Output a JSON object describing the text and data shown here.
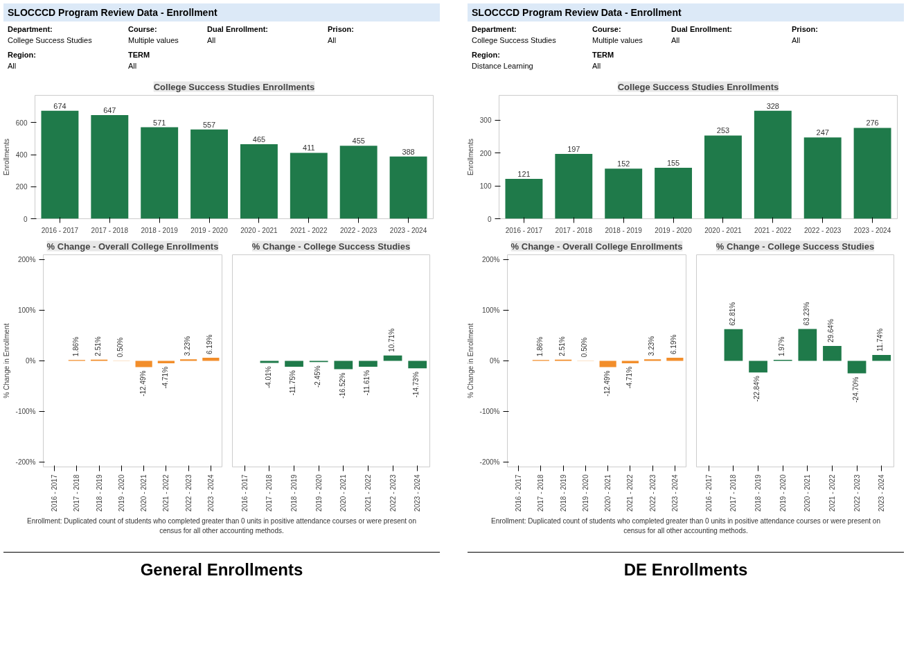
{
  "chart_data": [
    {
      "type": "bar",
      "title": "College Success Studies Enrollments",
      "ylabel": "Enrollments",
      "categories": [
        "2016 - 2017",
        "2017 - 2018",
        "2018 - 2019",
        "2019 - 2020",
        "2020 - 2021",
        "2021 - 2022",
        "2022 - 2023",
        "2023 - 2024"
      ],
      "values": [
        674,
        647,
        571,
        557,
        465,
        411,
        455,
        388
      ],
      "color": "#1f7a4a",
      "data_labels": true,
      "ylim": [
        0,
        770
      ],
      "yticks": [
        0,
        200,
        400,
        600
      ],
      "grid": false,
      "annotations": [
        "SLOCCCD Program Review Data - Enrollment",
        "Department:",
        "College Success Studies",
        "Course:",
        "Multiple values",
        "Dual Enrollment:",
        "All",
        "Prison:",
        "All",
        "Region:",
        "All",
        "TERM",
        "All"
      ]
    },
    {
      "type": "bar",
      "title": "% Change - Overall College Enrollments",
      "ylabel": "% Change in Enrollment",
      "categories": [
        "2016 - 2017",
        "2017 - 2018",
        "2018 - 2019",
        "2019 - 2020",
        "2020 - 2021",
        "2021 - 2022",
        "2022 - 2023",
        "2023 - 2024"
      ],
      "values": [
        null,
        1.86,
        2.51,
        0.5,
        -12.49,
        -4.71,
        3.23,
        6.19
      ],
      "value_labels": [
        null,
        "1.86%",
        "2.51%",
        "0.50%",
        "-12.49%",
        "-4.71%",
        "3.23%",
        "6.19%"
      ],
      "color": "#f28e2b",
      "ylim": [
        -210,
        210
      ],
      "yticks": [
        {
          "value": -200,
          "label": "-200%"
        },
        {
          "value": -100,
          "label": "-100%"
        },
        {
          "value": 0,
          "label": "0%"
        },
        {
          "value": 100,
          "label": "100%"
        },
        {
          "value": 200,
          "label": "200%"
        }
      ],
      "grid": false
    },
    {
      "type": "bar",
      "title": "% Change - College Success Studies",
      "categories": [
        "2016 - 2017",
        "2017 - 2018",
        "2018 - 2019",
        "2019 - 2020",
        "2020 - 2021",
        "2021 - 2022",
        "2022 - 2023",
        "2023 - 2024"
      ],
      "values": [
        null,
        -4.01,
        -11.75,
        -2.45,
        -16.52,
        -11.61,
        10.71,
        -14.73
      ],
      "value_labels": [
        null,
        "-4.01%",
        "-11.75%",
        "-2.45%",
        "-16.52%",
        "-11.61%",
        "10.71%",
        "-14.73%"
      ],
      "color": "#1f7a4a",
      "ylim": [
        -210,
        210
      ],
      "tick_labels": "x",
      "grid": false,
      "annotations": [
        "Enrollment: Duplicated count of students who completed greater than 0 units in positive attendance courses or were present on census for all other accounting methods.",
        "General Enrollments"
      ]
    },
    {
      "type": "bar",
      "title": "College Success Studies Enrollments",
      "ylabel": "Enrollments",
      "categories": [
        "2016 - 2017",
        "2017 - 2018",
        "2018 - 2019",
        "2019 - 2020",
        "2020 - 2021",
        "2021 - 2022",
        "2022 - 2023",
        "2023 - 2024"
      ],
      "values": [
        121,
        197,
        152,
        155,
        253,
        328,
        247,
        276
      ],
      "color": "#1f7a4a",
      "data_labels": true,
      "ylim": [
        0,
        375
      ],
      "yticks": [
        0,
        100,
        200,
        300
      ],
      "grid": false,
      "annotations": [
        "SLOCCCD Program Review Data - Enrollment",
        "Department:",
        "College Success Studies",
        "Course:",
        "Multiple values",
        "Dual Enrollment:",
        "All",
        "Prison:",
        "All",
        "Region:",
        "Distance Learning",
        "TERM",
        "All"
      ]
    },
    {
      "type": "bar",
      "title": "% Change - Overall College Enrollments",
      "ylabel": "% Change in Enrollment",
      "categories": [
        "2016 - 2017",
        "2017 - 2018",
        "2018 - 2019",
        "2019 - 2020",
        "2020 - 2021",
        "2021 - 2022",
        "2022 - 2023",
        "2023 - 2024"
      ],
      "values": [
        null,
        1.86,
        2.51,
        0.5,
        -12.49,
        -4.71,
        3.23,
        6.19
      ],
      "value_labels": [
        null,
        "1.86%",
        "2.51%",
        "0.50%",
        "-12.49%",
        "-4.71%",
        "3.23%",
        "6.19%"
      ],
      "color": "#f28e2b",
      "ylim": [
        -210,
        210
      ],
      "yticks": [
        {
          "value": -200,
          "label": "-200%"
        },
        {
          "value": -100,
          "label": "-100%"
        },
        {
          "value": 0,
          "label": "0%"
        },
        {
          "value": 100,
          "label": "100%"
        },
        {
          "value": 200,
          "label": "200%"
        }
      ],
      "grid": false
    },
    {
      "type": "bar",
      "title": "% Change - College Success Studies",
      "categories": [
        "2016 - 2017",
        "2017 - 2018",
        "2018 - 2019",
        "2019 - 2020",
        "2020 - 2021",
        "2021 - 2022",
        "2022 - 2023",
        "2023 - 2024"
      ],
      "values": [
        null,
        62.81,
        -22.84,
        1.97,
        63.23,
        29.64,
        -24.7,
        11.74
      ],
      "value_labels": [
        null,
        "62.81%",
        "-22.84%",
        "1.97%",
        "63.23%",
        "29.64%",
        "-24.70%",
        "11.74%"
      ],
      "color": "#1f7a4a",
      "ylim": [
        -210,
        210
      ],
      "tick_labels": "x",
      "grid": false,
      "annotations": [
        "Enrollment: Duplicated count of students who completed greater than 0 units in positive attendance courses or were present on census for all other accounting methods.",
        "DE Enrollments"
      ]
    }
  ]
}
